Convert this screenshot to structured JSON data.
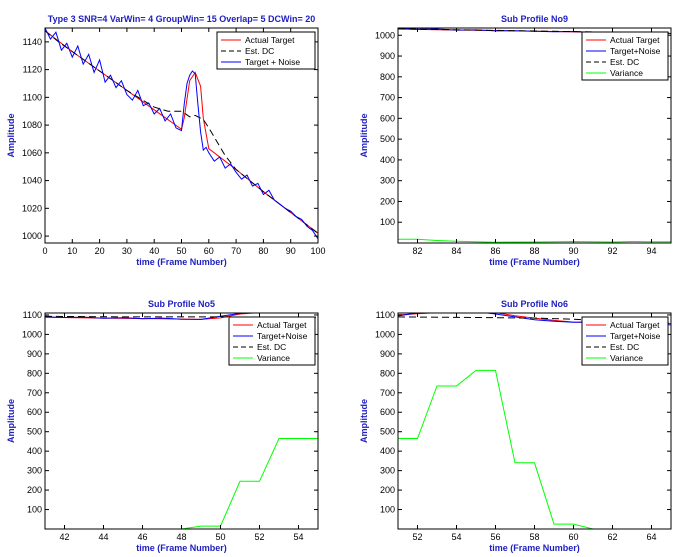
{
  "figure": {
    "background": "#ffffff"
  },
  "chart_data": [
    {
      "type": "line",
      "title": "Type 3 SNR=4 VarWin= 4 GroupWin= 15 Overlap= 5 DCWin= 20",
      "xlabel": "time (Frame Number)",
      "ylabel": "Amplitude",
      "xlim": [
        0,
        100
      ],
      "ylim": [
        995,
        1150
      ],
      "xticks": [
        0,
        10,
        20,
        30,
        40,
        50,
        60,
        70,
        80,
        90,
        100
      ],
      "yticks": [
        1000,
        1020,
        1040,
        1060,
        1080,
        1100,
        1120,
        1140
      ],
      "legend": {
        "position": "top-right",
        "entries": [
          "Actual Target",
          "Est. DC",
          "Target + Noise"
        ]
      },
      "series": [
        {
          "name": "Actual Target",
          "color": "#ff0000",
          "dash": "solid",
          "x": [
            0,
            10,
            20,
            30,
            40,
            50,
            51,
            53,
            55,
            57,
            58,
            60,
            70,
            80,
            90,
            100
          ],
          "y": [
            1148,
            1133,
            1119,
            1105,
            1091,
            1077,
            1085,
            1112,
            1118,
            1108,
            1085,
            1063,
            1048,
            1032,
            1017,
            1002
          ]
        },
        {
          "name": "Est. DC",
          "color": "#000000",
          "dash": "dash",
          "x": [
            0,
            5,
            10,
            20,
            30,
            40,
            45,
            50,
            53,
            55,
            58,
            60,
            63,
            66,
            70,
            80,
            90,
            100
          ],
          "y": [
            1148,
            1140,
            1133,
            1119,
            1105,
            1093,
            1090,
            1090,
            1086,
            1087,
            1084,
            1078,
            1068,
            1058,
            1048,
            1032,
            1017,
            1002
          ]
        },
        {
          "name": "Target + Noise",
          "color": "#0000ff",
          "dash": "solid",
          "x": [
            0,
            2,
            4,
            6,
            8,
            10,
            12,
            14,
            16,
            18,
            20,
            22,
            24,
            26,
            28,
            30,
            32,
            34,
            36,
            38,
            40,
            42,
            44,
            46,
            48,
            50,
            51,
            52,
            53,
            54,
            55,
            56,
            57,
            58,
            59,
            60,
            62,
            64,
            66,
            68,
            70,
            72,
            74,
            76,
            78,
            80,
            82,
            84,
            86,
            88,
            90,
            92,
            94,
            96,
            98,
            100
          ],
          "y": [
            1150,
            1142,
            1147,
            1134,
            1139,
            1129,
            1137,
            1124,
            1131,
            1118,
            1127,
            1111,
            1116,
            1107,
            1112,
            1102,
            1098,
            1105,
            1094,
            1096,
            1088,
            1092,
            1083,
            1088,
            1078,
            1076,
            1095,
            1110,
            1116,
            1119,
            1117,
            1095,
            1075,
            1062,
            1064,
            1060,
            1054,
            1057,
            1049,
            1052,
            1046,
            1041,
            1044,
            1036,
            1038,
            1030,
            1033,
            1026,
            1023,
            1020,
            1018,
            1014,
            1012,
            1007,
            1004,
            998
          ]
        }
      ]
    },
    {
      "type": "line",
      "title": "Sub Profile No9",
      "xlabel": "time (Frame Number)",
      "ylabel": "Amplitude",
      "xlim": [
        81,
        95
      ],
      "ylim": [
        0,
        1035
      ],
      "xticks": [
        82,
        84,
        86,
        88,
        90,
        92,
        94
      ],
      "yticks": [
        100,
        200,
        300,
        400,
        500,
        600,
        700,
        800,
        900,
        1000
      ],
      "legend": {
        "position": "top-right",
        "entries": [
          "Actual Target",
          "Target+Noise",
          "Est. DC",
          "Variance"
        ]
      },
      "series": [
        {
          "name": "Actual Target",
          "color": "#ff0000",
          "dash": "solid",
          "x": [
            81,
            83,
            85,
            87,
            89,
            91,
            93,
            95
          ],
          "y": [
            1030,
            1027,
            1024,
            1021,
            1018,
            1015,
            1012,
            1009
          ]
        },
        {
          "name": "Target+Noise",
          "color": "#0000ff",
          "dash": "solid",
          "x": [
            81,
            82,
            83,
            84,
            85,
            86,
            87,
            88,
            89,
            90,
            91,
            92,
            93,
            94,
            95
          ],
          "y": [
            1032,
            1029,
            1030,
            1025,
            1026,
            1021,
            1022,
            1019,
            1017,
            1018,
            1014,
            1015,
            1012,
            1011,
            1008
          ]
        },
        {
          "name": "Est. DC",
          "color": "#000000",
          "dash": "dash",
          "x": [
            81,
            83,
            85,
            87,
            89,
            91,
            93,
            95
          ],
          "y": [
            1031,
            1028,
            1025,
            1022,
            1019,
            1016,
            1013,
            1010
          ]
        },
        {
          "name": "Variance",
          "color": "#00ff00",
          "dash": "solid",
          "x": [
            81,
            82,
            83,
            84,
            85,
            86,
            87,
            88,
            89,
            90,
            91,
            92,
            93,
            94,
            95
          ],
          "y": [
            18,
            18,
            12,
            8,
            6,
            4,
            5,
            5,
            6,
            7,
            6,
            5,
            7,
            6,
            6
          ]
        }
      ]
    },
    {
      "type": "line",
      "title": "Sub Profile No5",
      "xlabel": "time (Frame Number)",
      "ylabel": "Amplitude",
      "xlim": [
        41,
        55
      ],
      "ylim": [
        0,
        1110
      ],
      "xticks": [
        42,
        44,
        46,
        48,
        50,
        52,
        54
      ],
      "yticks": [
        100,
        200,
        300,
        400,
        500,
        600,
        700,
        800,
        900,
        1000,
        1100
      ],
      "legend": {
        "position": "top-right",
        "entries": [
          "Actual Target",
          "Target+Noise",
          "Est. DC",
          "Variance"
        ]
      },
      "series": [
        {
          "name": "Actual Target",
          "color": "#ff0000",
          "dash": "solid",
          "x": [
            41,
            44,
            47,
            49,
            50,
            51,
            52,
            53,
            55
          ],
          "y": [
            1088,
            1084,
            1080,
            1077,
            1085,
            1105,
            1112,
            1118,
            1118
          ]
        },
        {
          "name": "Target+Noise",
          "color": "#0000ff",
          "dash": "solid",
          "x": [
            41,
            42,
            43,
            44,
            45,
            46,
            47,
            48,
            49,
            50,
            51,
            52,
            53,
            54,
            55
          ],
          "y": [
            1090,
            1087,
            1089,
            1083,
            1086,
            1080,
            1084,
            1078,
            1077,
            1093,
            1108,
            1113,
            1117,
            1116,
            1114
          ]
        },
        {
          "name": "Est. DC",
          "color": "#000000",
          "dash": "dash",
          "x": [
            41,
            45,
            50,
            55
          ],
          "y": [
            1093,
            1090,
            1090,
            1088
          ]
        },
        {
          "name": "Variance",
          "color": "#00ff00",
          "dash": "solid",
          "x": [
            41,
            48,
            49,
            50,
            51,
            52,
            53,
            54,
            55
          ],
          "y": [
            0,
            0,
            15,
            15,
            245,
            245,
            465,
            465,
            465
          ]
        }
      ]
    },
    {
      "type": "line",
      "title": "Sub Profile No6",
      "xlabel": "time (Frame Number)",
      "ylabel": "Amplitude",
      "xlim": [
        51,
        65
      ],
      "ylim": [
        0,
        1110
      ],
      "xticks": [
        52,
        54,
        56,
        58,
        60,
        62,
        64
      ],
      "yticks": [
        100,
        200,
        300,
        400,
        500,
        600,
        700,
        800,
        900,
        1000,
        1100
      ],
      "legend": {
        "position": "top-right",
        "entries": [
          "Actual Target",
          "Target+Noise",
          "Est. DC",
          "Variance"
        ]
      },
      "series": [
        {
          "name": "Actual Target",
          "color": "#ff0000",
          "dash": "solid",
          "x": [
            51,
            53,
            55,
            56,
            57,
            58,
            59,
            60,
            62,
            65
          ],
          "y": [
            1100,
            1112,
            1118,
            1112,
            1096,
            1084,
            1072,
            1063,
            1060,
            1056
          ]
        },
        {
          "name": "Target+Noise",
          "color": "#0000ff",
          "dash": "solid",
          "x": [
            51,
            52,
            53,
            54,
            55,
            56,
            57,
            58,
            59,
            60,
            61,
            62,
            63,
            64,
            65
          ],
          "y": [
            1095,
            1110,
            1116,
            1119,
            1117,
            1105,
            1090,
            1075,
            1068,
            1062,
            1064,
            1060,
            1057,
            1055,
            1049
          ]
        },
        {
          "name": "Est. DC",
          "color": "#000000",
          "dash": "dash",
          "x": [
            51,
            55,
            58,
            60,
            62,
            65
          ],
          "y": [
            1090,
            1087,
            1084,
            1078,
            1068,
            1058
          ]
        },
        {
          "name": "Variance",
          "color": "#00ff00",
          "dash": "solid",
          "x": [
            51,
            52,
            53,
            54,
            55,
            56,
            57,
            58,
            59,
            60,
            61,
            62,
            63,
            64,
            65
          ],
          "y": [
            465,
            465,
            735,
            735,
            815,
            815,
            340,
            340,
            25,
            25,
            0,
            0,
            0,
            0,
            0
          ]
        }
      ]
    }
  ]
}
